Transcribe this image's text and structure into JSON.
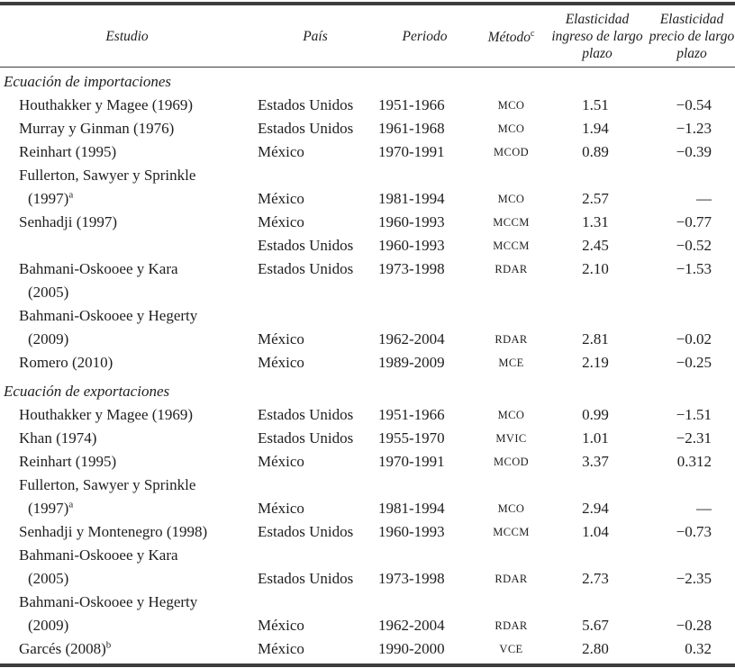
{
  "table": {
    "columns": {
      "study": "Estudio",
      "country": "País",
      "period": "Periodo",
      "method": "Método",
      "method_sup": "c",
      "income": "Elasticidad ingreso de largo plazo",
      "price": "Elasticidad precio de largo plazo"
    },
    "sections": [
      {
        "title": "Ecuación de importaciones",
        "rows": [
          {
            "study": "Houthakker y Magee (1969)",
            "country": "Estados Unidos",
            "period": "1951-1966",
            "method": "MCO",
            "income": "1.51",
            "price": "−0.54"
          },
          {
            "study": "Murray y Ginman (1976)",
            "country": "Estados Unidos",
            "period": "1961-1968",
            "method": "MCO",
            "income": "1.94",
            "price": "−1.23"
          },
          {
            "study": "Reinhart (1995)",
            "country": "México",
            "period": "1970-1991",
            "method": "MCOD",
            "income": "0.89",
            "price": "−0.39"
          },
          {
            "study": "Fullerton, Sawyer y Sprinkle"
          },
          {
            "study": "(1997)",
            "sup": "a",
            "country": "México",
            "period": "1981-1994",
            "method": "MCO",
            "income": "2.57",
            "price": "—"
          },
          {
            "study": "Senhadji (1997)",
            "country": "México",
            "period": "1960-1993",
            "method": "MCCM",
            "income": "1.31",
            "price": "−0.77"
          },
          {
            "study": "",
            "country": "Estados Unidos",
            "period": "1960-1993",
            "method": "MCCM",
            "income": "2.45",
            "price": "−0.52"
          },
          {
            "study": "Bahmani-Oskooee y Kara",
            "country": "Estados Unidos",
            "period": "1973-1998",
            "method": "RDAR",
            "income": "2.10",
            "price": "−1.53"
          },
          {
            "study": "(2005)"
          },
          {
            "study": "Bahmani-Oskooee y Hegerty"
          },
          {
            "study": "(2009)",
            "country": "México",
            "period": "1962-2004",
            "method": "RDAR",
            "income": "2.81",
            "price": "−0.02"
          },
          {
            "study": "Romero (2010)",
            "country": "México",
            "period": "1989-2009",
            "method": "MCE",
            "income": "2.19",
            "price": "−0.25"
          }
        ]
      },
      {
        "title": "Ecuación de exportaciones",
        "rows": [
          {
            "study": "Houthakker y Magee (1969)",
            "country": "Estados Unidos",
            "period": "1951-1966",
            "method": "MCO",
            "income": "0.99",
            "price": "−1.51"
          },
          {
            "study": "Khan (1974)",
            "country": "Estados Unidos",
            "period": "1955-1970",
            "method": "MVIC",
            "income": "1.01",
            "price": "−2.31"
          },
          {
            "study": "Reinhart (1995)",
            "country": "México",
            "period": "1970-1991",
            "method": "MCOD",
            "income": "3.37",
            "price": "0.312"
          },
          {
            "study": "Fullerton, Sawyer y Sprinkle"
          },
          {
            "study": "(1997)",
            "sup": "a",
            "country": "México",
            "period": "1981-1994",
            "method": "MCO",
            "income": "2.94",
            "price": "—"
          },
          {
            "study": "Senhadji y Montenegro (1998)",
            "country": "Estados Unidos",
            "period": "1960-1993",
            "method": "MCCM",
            "income": "1.04",
            "price": "−0.73"
          },
          {
            "study": "Bahmani-Oskooee y Kara"
          },
          {
            "study": "(2005)",
            "country": "Estados Unidos",
            "period": "1973-1998",
            "method": "RDAR",
            "income": "2.73",
            "price": "−2.35"
          },
          {
            "study": "Bahmani-Oskooee y Hegerty"
          },
          {
            "study": "(2009)",
            "country": "México",
            "period": "1962-2004",
            "method": "RDAR",
            "income": "5.67",
            "price": "−0.28"
          },
          {
            "study": "Garcés (2008)",
            "sup": "b",
            "country": "México",
            "period": "1990-2000",
            "method": "VCE",
            "income": "2.80",
            "price": "0.32"
          }
        ]
      }
    ]
  }
}
